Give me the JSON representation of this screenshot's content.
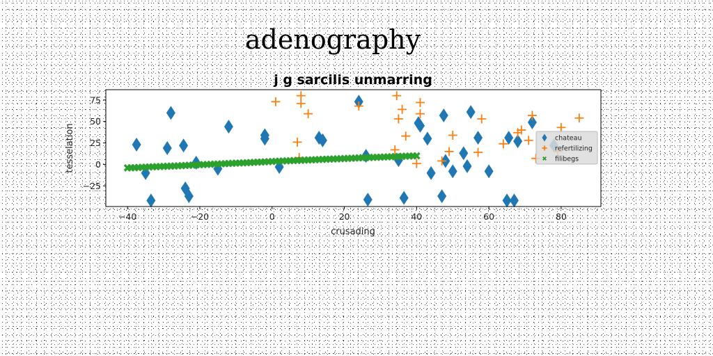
{
  "chart_data": {
    "type": "scatter",
    "suptitle": "adenography",
    "title": "j g sarcilis unmarring",
    "xlabel": "crusading",
    "ylabel": "tesselation",
    "xlim": [
      -46,
      91
    ],
    "ylim": [
      -49,
      87
    ],
    "xticks": [
      -40,
      -20,
      0,
      20,
      40,
      60,
      80
    ],
    "xtick_labels": [
      "−40",
      "−20",
      "0",
      "20",
      "40",
      "60",
      "80"
    ],
    "yticks": [
      -25,
      0,
      25,
      50,
      75
    ],
    "ytick_labels": [
      "−25",
      "0",
      "25",
      "50",
      "75"
    ],
    "grid": false,
    "legend_position": "center-right",
    "series": [
      {
        "name": "chateau",
        "marker": "diamond",
        "color": "#1f77b4",
        "x": [
          -37.5,
          -35,
          -33.5,
          -29,
          -28,
          -24.5,
          -24,
          -23,
          -21,
          -15,
          -12,
          -2,
          -2,
          2,
          13,
          14,
          24,
          26,
          26.5,
          35,
          36.5,
          40.5,
          41,
          43,
          44,
          47,
          47.5,
          48,
          50,
          53,
          54,
          55,
          57,
          60,
          65,
          65.5,
          67,
          68,
          72,
          78
        ],
        "y": [
          23,
          -10,
          -42,
          19,
          60,
          22,
          -28,
          -37,
          2,
          -5,
          44,
          30,
          34,
          -3,
          31,
          28,
          73,
          10,
          -41,
          5,
          -39,
          48,
          45,
          30,
          -10,
          -37,
          57,
          4,
          -8,
          13,
          -2,
          61,
          31,
          -8,
          -42,
          31,
          -42,
          27,
          49,
          22
        ]
      },
      {
        "name": "refertilizing",
        "marker": "plus",
        "color": "#ff7f0e",
        "x": [
          1,
          7,
          7.5,
          8,
          8,
          10,
          24,
          34,
          34.5,
          35,
          36,
          37,
          40,
          41,
          41,
          47,
          49,
          50,
          57,
          58,
          64,
          68,
          69,
          71,
          72,
          73,
          79,
          80,
          85
        ],
        "y": [
          73,
          26,
          8,
          80,
          71,
          59,
          68,
          17,
          80,
          53,
          64,
          33,
          1,
          72,
          59,
          4,
          15,
          34,
          14,
          53,
          24,
          37,
          40,
          28,
          57,
          7,
          15,
          43,
          54
        ]
      },
      {
        "name": "filibegs",
        "marker": "x",
        "color": "#2ca02c",
        "x": [
          -40,
          -39,
          -38,
          -37,
          -36,
          -35,
          -34,
          -33,
          -32,
          -31,
          -30,
          -29,
          -28,
          -27,
          -26,
          -25,
          -24,
          -23,
          -22,
          -21,
          -20,
          -19,
          -18,
          -17,
          -16,
          -15,
          -14,
          -13,
          -12,
          -11,
          -10,
          -9,
          -8,
          -7,
          -6,
          -5,
          -4,
          -3,
          -2,
          -1,
          0,
          1,
          2,
          3,
          4,
          5,
          6,
          7,
          8,
          9,
          10,
          11,
          12,
          13,
          14,
          15,
          16,
          17,
          18,
          19,
          20,
          21,
          22,
          23,
          24,
          25,
          26,
          27,
          28,
          29,
          30,
          31,
          32,
          33,
          34,
          35,
          36,
          37,
          38,
          39,
          40
        ],
        "y": [
          -4,
          -3.9,
          -3.8,
          -3.6,
          -3.4,
          -3.2,
          -3,
          -2.8,
          -2.6,
          -2.5,
          -2.3,
          -2.1,
          -2,
          -1.8,
          -1.6,
          -1.4,
          -1.2,
          -1,
          -0.8,
          -0.6,
          -0.4,
          -0.2,
          0,
          0.2,
          0.3,
          0.5,
          0.7,
          0.9,
          1.1,
          1.3,
          1.5,
          1.6,
          1.8,
          2,
          2.2,
          2.4,
          2.6,
          2.8,
          3,
          3.2,
          3.4,
          3.6,
          3.8,
          4,
          4.1,
          4.3,
          4.5,
          4.6,
          4.8,
          5,
          5.2,
          5.3,
          5.5,
          5.7,
          5.9,
          6,
          6.2,
          6.4,
          6.5,
          6.7,
          6.9,
          7,
          7.2,
          7.4,
          7.6,
          7.7,
          7.9,
          8,
          8.2,
          8.3,
          8.5,
          8.7,
          8.8,
          9,
          9.1,
          9.3,
          9.4,
          9.6,
          9.7,
          9.9,
          10
        ]
      }
    ]
  }
}
